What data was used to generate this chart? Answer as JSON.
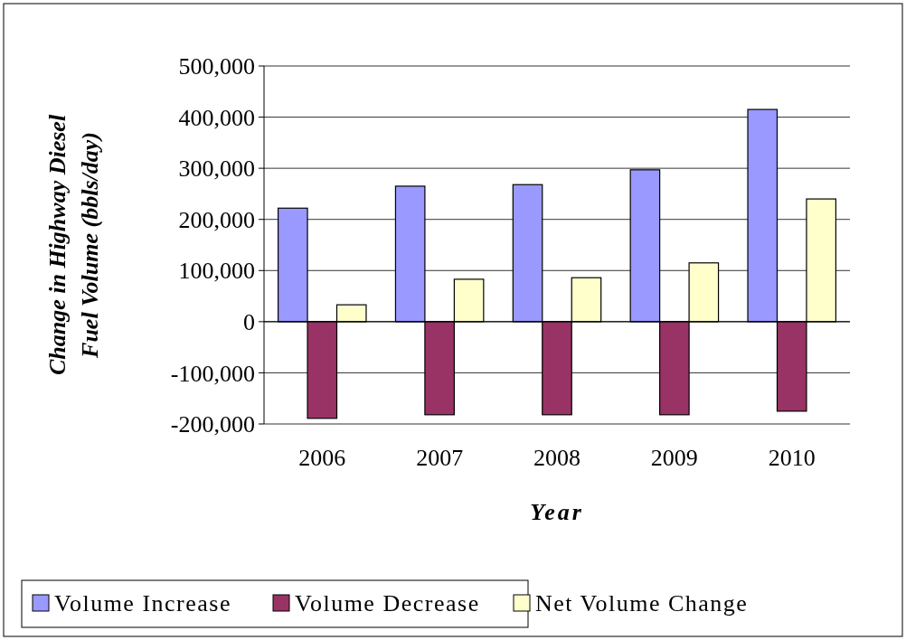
{
  "chart_data": {
    "type": "bar",
    "xlabel": "Year",
    "ylabel": "Change in Highway Diesel Fuel Volume (bbls/day)",
    "categories": [
      "2006",
      "2007",
      "2008",
      "2009",
      "2010"
    ],
    "series": [
      {
        "name": "Volume Increase",
        "color": "#9999ff",
        "values": [
          222000,
          265000,
          268000,
          297000,
          415000
        ]
      },
      {
        "name": "Volume Decrease",
        "color": "#993366",
        "values": [
          -189000,
          -182000,
          -182000,
          -182000,
          -175000
        ]
      },
      {
        "name": "Net Volume Change",
        "color": "#ffffcc",
        "values": [
          33000,
          83000,
          86000,
          115000,
          240000
        ]
      }
    ],
    "ylim": [
      -200000,
      500000
    ],
    "yticks": [
      {
        "value": -200000,
        "label": "-200,000"
      },
      {
        "value": -100000,
        "label": "-100,000"
      },
      0,
      {
        "value": 100000,
        "label": "100,000"
      },
      {
        "value": 200000,
        "label": "200,000"
      },
      {
        "value": 300000,
        "label": "300,000"
      },
      {
        "value": 400000,
        "label": "400,000"
      },
      {
        "value": 500000,
        "label": "500,000"
      }
    ],
    "grid": "y",
    "legend": "bottom"
  }
}
